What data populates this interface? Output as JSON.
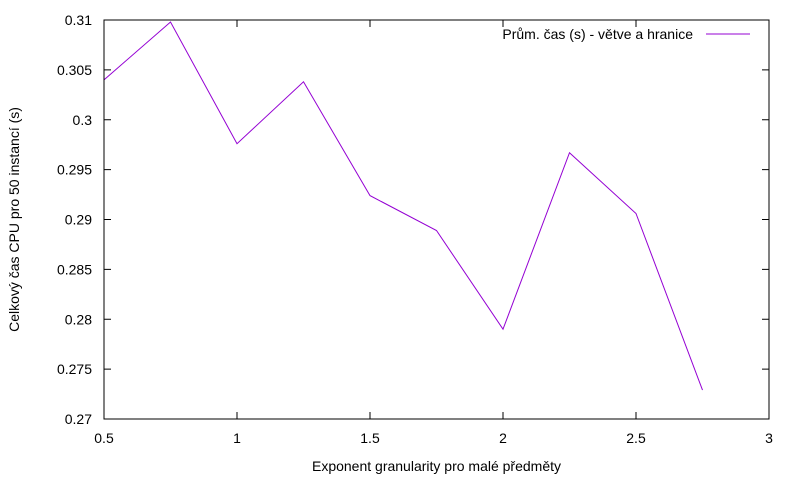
{
  "chart_data": {
    "type": "line",
    "title": "",
    "xlabel": "Exponent granularity pro malé předměty",
    "ylabel": "Celkový čas CPU pro 50 instancí (s)",
    "xlim": [
      0.5,
      3
    ],
    "ylim": [
      0.27,
      0.31
    ],
    "xticks": [
      0.5,
      1,
      1.5,
      2,
      2.5,
      3
    ],
    "xtick_labels": [
      "0.5",
      "1",
      "1.5",
      "2",
      "2.5",
      "3"
    ],
    "yticks": [
      0.27,
      0.275,
      0.28,
      0.285,
      0.29,
      0.295,
      0.3,
      0.305,
      0.31
    ],
    "ytick_labels": [
      "0.27",
      "0.275",
      "0.28",
      "0.285",
      "0.29",
      "0.295",
      "0.3",
      "0.305",
      "0.31"
    ],
    "grid": false,
    "legend_position": "top-right",
    "series": [
      {
        "name": "Prům. čas (s) - větve a hranice",
        "color": "#9400d3",
        "x": [
          0.5,
          0.75,
          1,
          1.25,
          1.5,
          1.75,
          2,
          2.25,
          2.5,
          2.75
        ],
        "y": [
          0.304,
          0.3098,
          0.2976,
          0.3038,
          0.2924,
          0.2889,
          0.279,
          0.2967,
          0.2906,
          0.2729
        ]
      }
    ]
  }
}
